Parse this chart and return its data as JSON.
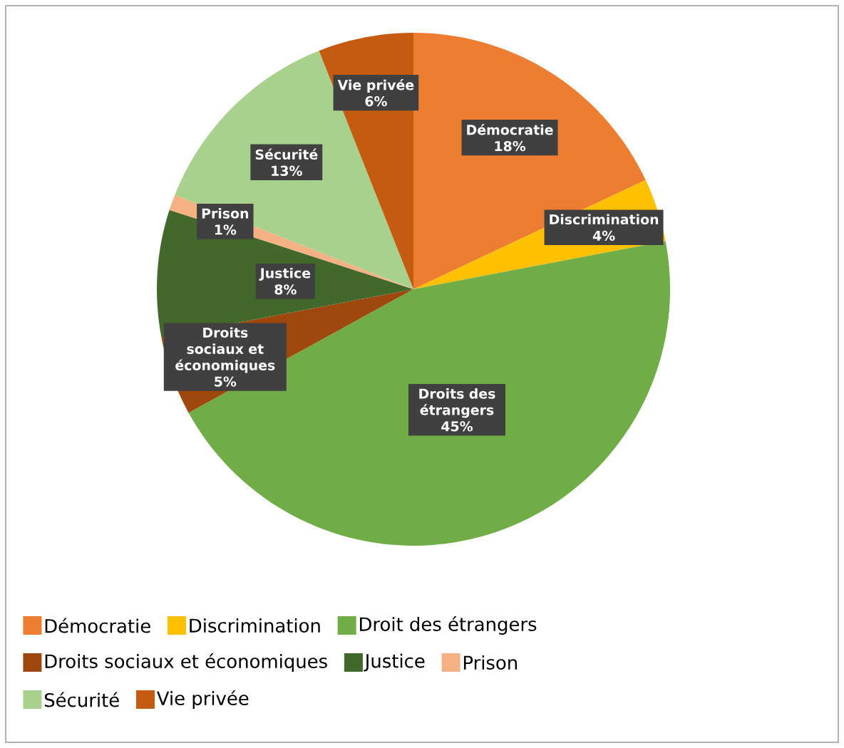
{
  "chart_data": {
    "type": "pie",
    "categories": [
      "Démocratie",
      "Discrimination",
      "Droit des étrangers",
      "Droits sociaux et économiques",
      "Justice",
      "Prison",
      "Sécurité",
      "Vie privée"
    ],
    "values": [
      18,
      4,
      45,
      5,
      8,
      1,
      13,
      6
    ],
    "value_labels": [
      "18%",
      "4%",
      "45%",
      "5%",
      "8%",
      "1%",
      "13%",
      "6%"
    ],
    "colors": [
      "#ed7d31",
      "#ffc000",
      "#70ad47",
      "#9e480e",
      "#43682b",
      "#f4b183",
      "#a9d18e",
      "#c55a11"
    ],
    "annotations": [
      "Démocratie",
      "Discrimination",
      "Droits des étrangers",
      "Droits sociaux et économiques",
      "Justice",
      "Prison",
      "Sécurité",
      "Vie privée"
    ],
    "legend": "bottom"
  }
}
